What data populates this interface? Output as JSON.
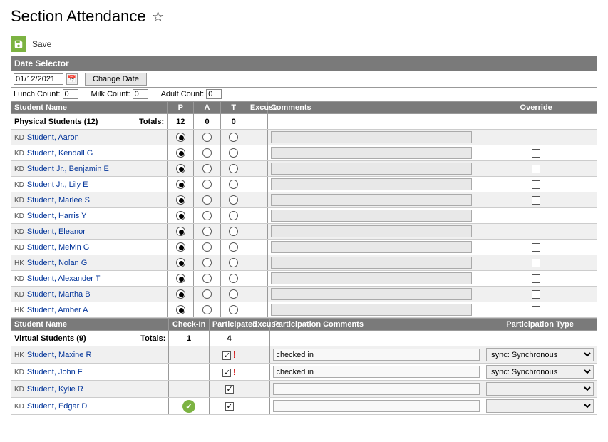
{
  "title": "Section Attendance",
  "save_label": "Save",
  "date_selector_label": "Date Selector",
  "date_value": "01/12/2021",
  "change_date_label": "Change Date",
  "counts": {
    "lunch_label": "Lunch Count:",
    "lunch_value": "0",
    "milk_label": "Milk Count:",
    "milk_value": "0",
    "adult_label": "Adult Count:",
    "adult_value": "0"
  },
  "physical": {
    "headers": {
      "name": "Student Name",
      "p": "P",
      "a": "A",
      "t": "T",
      "excuse": "Excuse",
      "comments": "Comments",
      "override": "Override"
    },
    "group_label": "Physical Students (12)",
    "totals_label": "Totals:",
    "totals": {
      "p": "12",
      "a": "0",
      "t": "0"
    },
    "rows": [
      {
        "tag": "KD",
        "name": "Student, Aaron",
        "sel": "p",
        "override": null
      },
      {
        "tag": "KD",
        "name": "Student, Kendall G",
        "sel": "p",
        "override": false
      },
      {
        "tag": "KD",
        "name": "Student Jr., Benjamin E",
        "sel": "p",
        "override": false
      },
      {
        "tag": "KD",
        "name": "Student Jr., Lily E",
        "sel": "p",
        "override": false
      },
      {
        "tag": "KD",
        "name": "Student, Marlee S",
        "sel": "p",
        "override": false
      },
      {
        "tag": "KD",
        "name": "Student, Harris Y",
        "sel": "p",
        "override": false
      },
      {
        "tag": "KD",
        "name": "Student, Eleanor",
        "sel": "p",
        "override": null
      },
      {
        "tag": "KD",
        "name": "Student, Melvin G",
        "sel": "p",
        "override": false
      },
      {
        "tag": "HK",
        "name": "Student, Nolan G",
        "sel": "p",
        "override": false
      },
      {
        "tag": "KD",
        "name": "Student, Alexander T",
        "sel": "p",
        "override": false
      },
      {
        "tag": "KD",
        "name": "Student, Martha B",
        "sel": "p",
        "override": false
      },
      {
        "tag": "HK",
        "name": "Student, Amber A",
        "sel": "p",
        "override": false
      }
    ]
  },
  "virtual": {
    "headers": {
      "name": "Student Name",
      "checkin": "Check-In",
      "participated": "Participated",
      "excuse": "Excuse",
      "pcomments": "Participation Comments",
      "ptype": "Participation Type"
    },
    "group_label": "Virtual Students (9)",
    "totals_label": "Totals:",
    "totals": {
      "checkin": "1",
      "participated": "4"
    },
    "rows": [
      {
        "tag": "HK",
        "name": "Student, Maxine R",
        "checkin": false,
        "participated": true,
        "warn": true,
        "comment": "checked in",
        "ptype": "sync: Synchronous"
      },
      {
        "tag": "KD",
        "name": "Student, John F",
        "checkin": false,
        "participated": true,
        "warn": true,
        "comment": "checked in",
        "ptype": "sync: Synchronous"
      },
      {
        "tag": "KD",
        "name": "Student, Kylie R",
        "checkin": false,
        "participated": true,
        "warn": false,
        "comment": "",
        "ptype": ""
      },
      {
        "tag": "KD",
        "name": "Student, Edgar D",
        "checkin": true,
        "participated": true,
        "warn": false,
        "comment": "",
        "ptype": ""
      }
    ]
  },
  "colors": {
    "header_bg": "#7a7a7a",
    "accent_green": "#7cb342",
    "link_blue": "#003399",
    "warn_red": "#cc0000"
  }
}
